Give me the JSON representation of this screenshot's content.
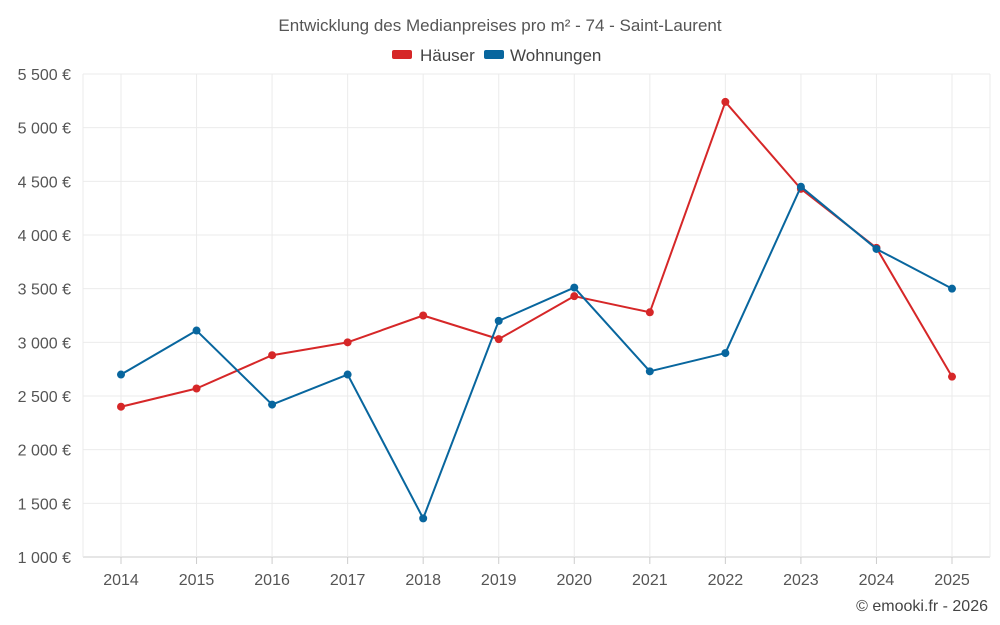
{
  "chart_data": {
    "type": "line",
    "title": "Entwicklung des Medianpreises pro m² - 74 - Saint-Laurent",
    "categories": [
      "2014",
      "2015",
      "2016",
      "2017",
      "2018",
      "2019",
      "2020",
      "2021",
      "2022",
      "2023",
      "2024",
      "2025"
    ],
    "series": [
      {
        "name": "Häuser",
        "color": "#d62728",
        "values": [
          2400,
          2570,
          2880,
          3000,
          3250,
          3030,
          3430,
          3280,
          5240,
          4430,
          3880,
          2680
        ]
      },
      {
        "name": "Wohnungen",
        "color": "#08669e",
        "values": [
          2700,
          3110,
          2420,
          2700,
          1360,
          3200,
          3510,
          2730,
          2900,
          4450,
          3870,
          3500
        ]
      }
    ],
    "ylim": [
      1000,
      5500
    ],
    "yticks": [
      1000,
      1500,
      2000,
      2500,
      3000,
      3500,
      4000,
      4500,
      5000,
      5500
    ],
    "ytick_labels": [
      "1 000 €",
      "1 500 €",
      "2 000 €",
      "2 500 €",
      "3 000 €",
      "3 500 €",
      "4 000 €",
      "4 500 €",
      "5 000 €",
      "5 500 €"
    ],
    "grid": true,
    "legend": "top-center"
  },
  "credit": "© emooki.fr - 2026"
}
